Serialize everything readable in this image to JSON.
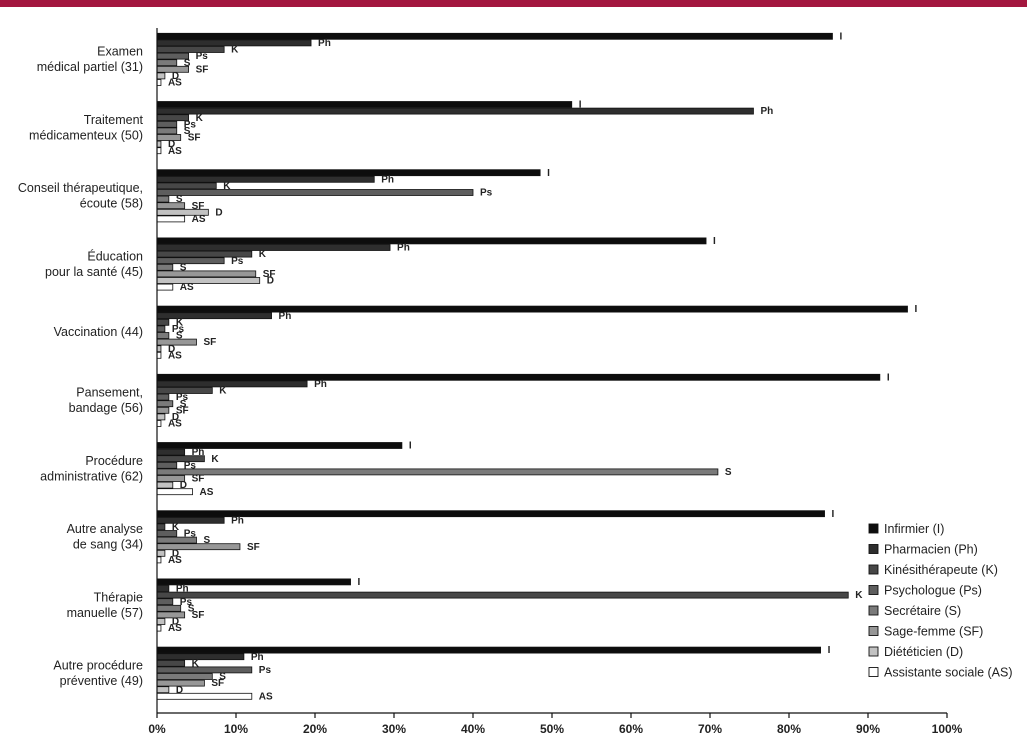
{
  "theme": {
    "accent": "#a3173f"
  },
  "chart_data": {
    "type": "bar",
    "orientation": "horizontal",
    "title": "",
    "xlabel": "",
    "ylabel": "",
    "xlim": [
      0,
      100
    ],
    "x_ticks": [
      0,
      10,
      20,
      30,
      40,
      50,
      60,
      70,
      80,
      90,
      100
    ],
    "tick_suffix": "%",
    "grid": false,
    "legend_position": "right",
    "categories": [
      "Examen\nmédical partiel (31)",
      "Traitement\nmédicamenteux (50)",
      "Conseil thérapeutique,\nécoute (58)",
      "Éducation\npour la santé (45)",
      "Vaccination (44)",
      "Pansement,\nbandage (56)",
      "Procédure\nadministrative (62)",
      "Autre analyse\nde sang (34)",
      "Thérapie\nmanuelle (57)",
      "Autre procédure\npréventive (49)"
    ],
    "series": [
      {
        "name": "Infirmier (I)",
        "abbr": "I",
        "color": "#0d0d0d",
        "values": [
          85.5,
          52.5,
          48.5,
          69.5,
          95,
          91.5,
          31,
          84.5,
          24.5,
          84
        ]
      },
      {
        "name": "Pharmacien (Ph)",
        "abbr": "Ph",
        "color": "#2e2e2e",
        "values": [
          19.5,
          75.5,
          27.5,
          29.5,
          14.5,
          19,
          3.5,
          8.5,
          1.5,
          11
        ]
      },
      {
        "name": "Kinésithérapeute (K)",
        "abbr": "K",
        "color": "#474747",
        "values": [
          8.5,
          4,
          7.5,
          12,
          1.5,
          7,
          6,
          1,
          87.5,
          3.5
        ]
      },
      {
        "name": "Psychologue (Ps)",
        "abbr": "Ps",
        "color": "#5e5e5e",
        "values": [
          4,
          2.5,
          40,
          8.5,
          1,
          1.5,
          2.5,
          2.5,
          2,
          12
        ]
      },
      {
        "name": "Secrétaire (S)",
        "abbr": "S",
        "color": "#7a7a7a",
        "values": [
          2.5,
          2.5,
          1.5,
          2,
          1.5,
          2,
          71,
          5,
          3,
          7
        ]
      },
      {
        "name": "Sage-femme (SF)",
        "abbr": "SF",
        "color": "#979797",
        "values": [
          4,
          3,
          3.5,
          12.5,
          5,
          1.5,
          3.5,
          10.5,
          3.5,
          6
        ]
      },
      {
        "name": "Diététicien (D)",
        "abbr": "D",
        "color": "#c2c2c2",
        "values": [
          1,
          0.5,
          6.5,
          13,
          0.5,
          1,
          2,
          1,
          1,
          1.5
        ]
      },
      {
        "name": "Assistante sociale (AS)",
        "abbr": "AS",
        "color": "#ffffff",
        "values": [
          0.5,
          0.5,
          3.5,
          2,
          0.5,
          0.5,
          4.5,
          0.5,
          0.5,
          12
        ]
      }
    ]
  }
}
